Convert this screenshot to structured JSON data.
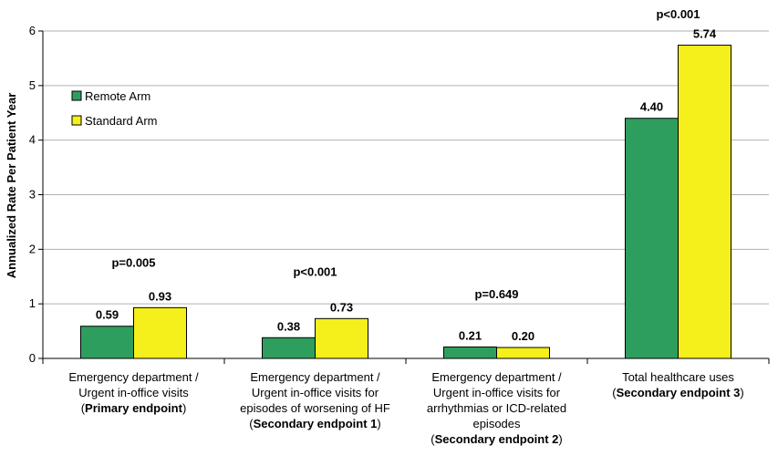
{
  "chart_data": {
    "type": "bar",
    "title": "",
    "xlabel": "",
    "ylabel": "Annualized Rate Per Patient Year",
    "ylim": [
      0,
      6
    ],
    "yticks": [
      "0",
      "1",
      "2",
      "3",
      "4",
      "5",
      "6"
    ],
    "grid": true,
    "legend_position": "top-left",
    "categories": [
      {
        "lines": [
          {
            "text": "Emergency department /"
          },
          {
            "text": "Urgent in-office visits"
          },
          {
            "pre": "(",
            "bold": "Primary endpoint",
            "post": ")"
          }
        ]
      },
      {
        "lines": [
          {
            "text": "Emergency department /"
          },
          {
            "text": "Urgent in-office visits for"
          },
          {
            "text": "episodes of worsening of HF"
          },
          {
            "pre": "(",
            "bold": "Secondary endpoint 1",
            "post": ")"
          }
        ]
      },
      {
        "lines": [
          {
            "text": "Emergency department /"
          },
          {
            "text": "Urgent in-office visits for"
          },
          {
            "text": "arrhythmias or ICD-related"
          },
          {
            "text": "episodes"
          },
          {
            "pre": "(",
            "bold": "Secondary endpoint 2",
            "post": ")"
          }
        ]
      },
      {
        "lines": [
          {
            "text": "Total healthcare uses"
          },
          {
            "pre": "(",
            "bold": "Secondary endpoint 3",
            "post": ")"
          }
        ]
      }
    ],
    "series": [
      {
        "name": "Remote Arm",
        "color": "#2e9e5e",
        "values": [
          0.59,
          0.38,
          0.21,
          4.4
        ],
        "labels": [
          "0.59",
          "0.38",
          "0.21",
          "4.40"
        ]
      },
      {
        "name": "Standard Arm",
        "color": "#f5ef1b",
        "values": [
          0.93,
          0.73,
          0.2,
          5.74
        ],
        "labels": [
          "0.93",
          "0.73",
          "0.20",
          "5.74"
        ]
      }
    ],
    "annotations": [
      {
        "category": 0,
        "text": "p=0.005",
        "y": 1.75
      },
      {
        "category": 1,
        "text": "p<0.001",
        "y": 1.58
      },
      {
        "category": 2,
        "text": "p=0.649",
        "y": 1.17
      },
      {
        "category": 3,
        "text": "p<0.001",
        "y": 6.3
      }
    ]
  }
}
